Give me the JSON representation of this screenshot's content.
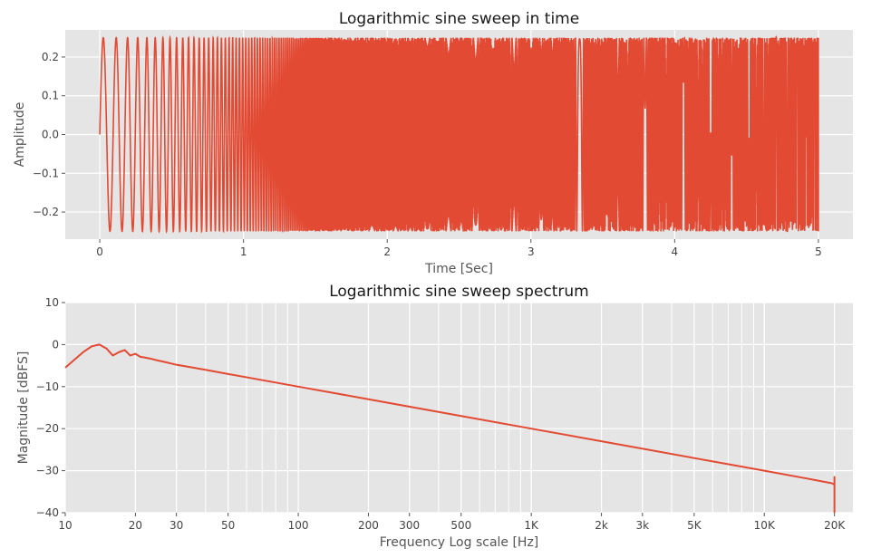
{
  "chart_data": [
    {
      "type": "line",
      "title": "Logarithmic sine sweep in time",
      "xlabel": "Time [Sec]",
      "ylabel": "Amplitude",
      "xlim": [
        -0.24,
        5.24
      ],
      "ylim": [
        -0.27,
        0.27
      ],
      "x_ticks": [
        0,
        1,
        2,
        3,
        4,
        5
      ],
      "x_tick_labels": [
        "0",
        "1",
        "2",
        "3",
        "4",
        "5"
      ],
      "y_ticks": [
        -0.2,
        -0.1,
        0.0,
        0.1,
        0.2
      ],
      "y_tick_labels": [
        "−0.2",
        "−0.1",
        "0.0",
        "0.1",
        "0.2"
      ],
      "grid": true,
      "style": "ggplot",
      "color": "#E24A33",
      "series": [
        {
          "description": "logarithmic sine sweep, amplitude 0.25, from 0 s to 5 s",
          "amplitude": 0.25,
          "duration_s": 5,
          "f_start_hz": 10,
          "f_end_hz": 20000
        }
      ]
    },
    {
      "type": "line",
      "title": "Logarithmic sine sweep spectrum",
      "xlabel": "Frequency Log scale [Hz]",
      "ylabel": "Magnitude [dBFS]",
      "x_scale": "log",
      "xlim": [
        10,
        24000
      ],
      "ylim": [
        -40,
        10
      ],
      "x_ticks": [
        10,
        20,
        30,
        50,
        100,
        200,
        300,
        500,
        1000,
        2000,
        3000,
        5000,
        10000,
        20000
      ],
      "x_tick_labels": [
        "10",
        "20",
        "30",
        "50",
        "100",
        "200",
        "300",
        "500",
        "1K",
        "2k",
        "3k",
        "5K",
        "10K",
        "20K"
      ],
      "y_ticks": [
        -40,
        -30,
        -20,
        -10,
        0,
        10
      ],
      "y_tick_labels": [
        "−40",
        "−30",
        "−20",
        "−10",
        "0",
        "10"
      ],
      "grid": true,
      "style": "ggplot",
      "color": "#E24A33",
      "series": [
        {
          "x": [
            10,
            11,
            12,
            13,
            14,
            15,
            16,
            17,
            18,
            19,
            20,
            21,
            22,
            23,
            25,
            27,
            30,
            40,
            50,
            100,
            200,
            500,
            1000,
            2000,
            5000,
            10000,
            15000,
            19500,
            20000
          ],
          "y": [
            -5.5,
            -3.5,
            -1.7,
            -0.4,
            0.0,
            -0.9,
            -2.6,
            -1.8,
            -1.3,
            -2.6,
            -2.2,
            -2.9,
            -3.1,
            -3.3,
            -3.8,
            -4.2,
            -4.8,
            -6.0,
            -7.0,
            -10.0,
            -13.0,
            -17.0,
            -20.0,
            -23.0,
            -27.0,
            -30.0,
            -31.8,
            -33.0,
            -33.3
          ]
        }
      ]
    }
  ]
}
